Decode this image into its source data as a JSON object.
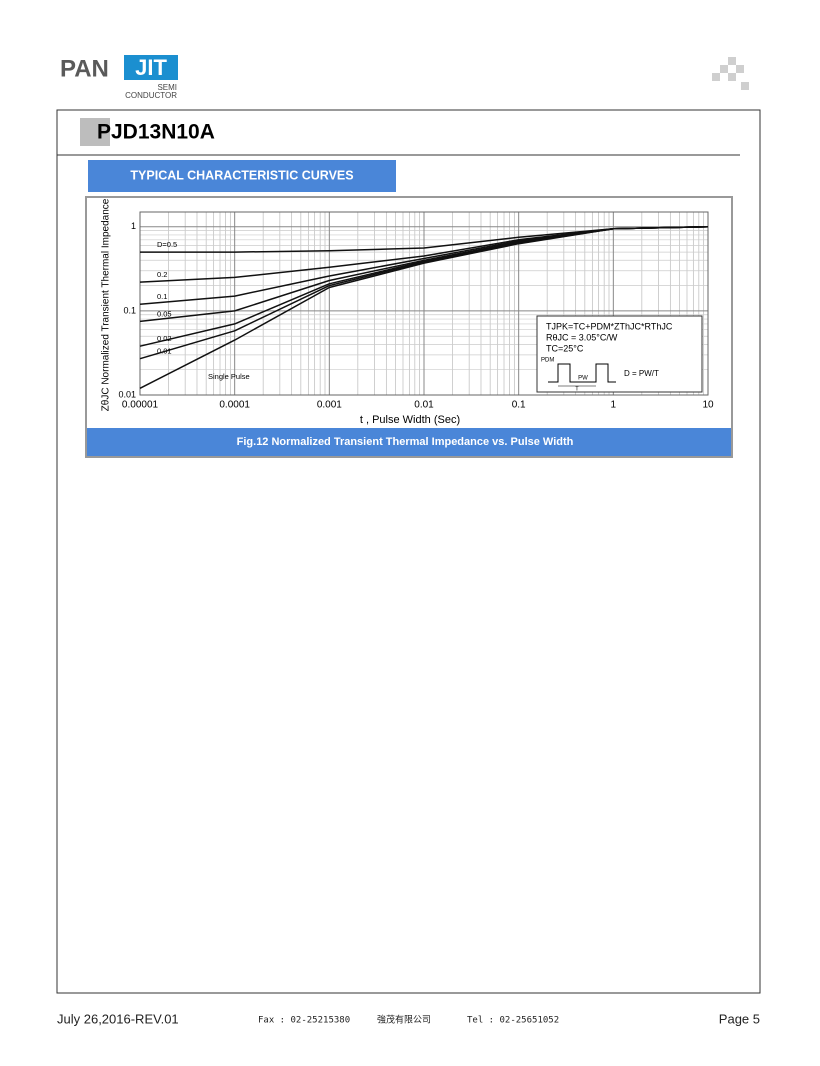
{
  "header": {
    "logo_left": "PAN",
    "logo_right": "JIT",
    "logo_sub1": "SEMI",
    "logo_sub2": "CONDUCTOR"
  },
  "title": "PJD13N10A",
  "section": "TYPICAL CHARACTERISTIC CURVES",
  "chart_data": {
    "type": "line",
    "caption": "Fig.12 Normalized Transient Thermal Impedance vs. Pulse Width",
    "x_label": "t , Pulse Width (Sec)",
    "y_label": "ZθJC Normalized Transient Thermal Impedance",
    "log_x": true,
    "log_y": true,
    "grid": true,
    "x": [
      1e-05,
      0.0001,
      0.001,
      0.01,
      0.1,
      1,
      10
    ],
    "series": [
      {
        "name": "D=0.5",
        "color": "#111111",
        "values": [
          0.5,
          0.5,
          0.52,
          0.56,
          0.75,
          0.95,
          1
        ]
      },
      {
        "name": "0.2",
        "color": "#111111",
        "values": [
          0.22,
          0.25,
          0.33,
          0.45,
          0.7,
          0.95,
          1
        ]
      },
      {
        "name": "0.1",
        "color": "#111111",
        "values": [
          0.12,
          0.15,
          0.26,
          0.42,
          0.68,
          0.95,
          1
        ]
      },
      {
        "name": "0.05",
        "color": "#111111",
        "values": [
          0.075,
          0.1,
          0.23,
          0.4,
          0.66,
          0.95,
          1
        ]
      },
      {
        "name": "0.02",
        "color": "#111111",
        "values": [
          0.038,
          0.07,
          0.21,
          0.39,
          0.65,
          0.95,
          1
        ]
      },
      {
        "name": "0.01",
        "color": "#111111",
        "values": [
          0.027,
          0.058,
          0.2,
          0.38,
          0.64,
          0.95,
          1
        ]
      },
      {
        "name": "Single Pulse",
        "color": "#111111",
        "values": [
          0.012,
          0.045,
          0.19,
          0.37,
          0.63,
          0.95,
          1
        ]
      }
    ],
    "xlim": [
      1e-05,
      10
    ],
    "xticks": [
      1e-05,
      0.0001,
      0.001,
      0.01,
      0.1,
      1,
      10
    ],
    "ylim": [
      0.01,
      1.5
    ],
    "yticks": [
      0.01,
      0.1,
      1
    ],
    "annotations": [
      "TJPK=TC+PDM*ZThJC*RThJC",
      "RθJC = 3.05°C/W",
      "TC=25°C",
      "PDM",
      "PW",
      "T",
      "D = PW/T"
    ]
  },
  "footer": {
    "date": "July 26,2016-REV.01",
    "fax": "Fax : 02-25215380",
    "company": "強茂有限公司",
    "tel": "Tel : 02-25651052",
    "page": "Page 5"
  }
}
